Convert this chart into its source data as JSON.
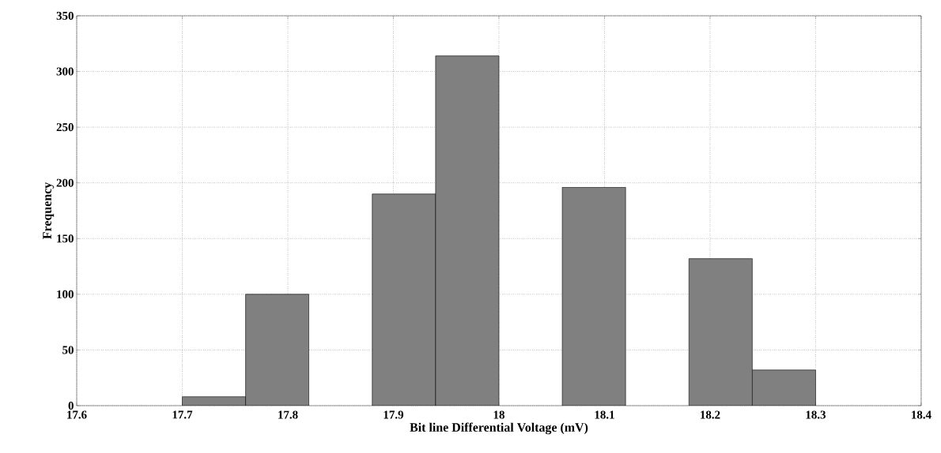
{
  "chart_data": {
    "type": "histogram",
    "xlabel": "Bit line Differential Voltage (mV)",
    "ylabel": "Frequency",
    "bins": [
      17.7,
      17.76,
      17.82,
      17.88,
      17.94,
      18.0,
      18.06,
      18.12,
      18.18,
      18.24,
      18.3
    ],
    "values": [
      8,
      100,
      0,
      190,
      314,
      0,
      196,
      0,
      132,
      32
    ],
    "color": "#808080",
    "xlim": [
      17.6,
      18.4
    ],
    "ylim": [
      0,
      350
    ],
    "xticks": [
      17.6,
      17.7,
      17.8,
      17.9,
      18,
      18.1,
      18.2,
      18.3,
      18.4
    ],
    "yticks": [
      0,
      50,
      100,
      150,
      200,
      250,
      300,
      350
    ],
    "grid": true
  }
}
